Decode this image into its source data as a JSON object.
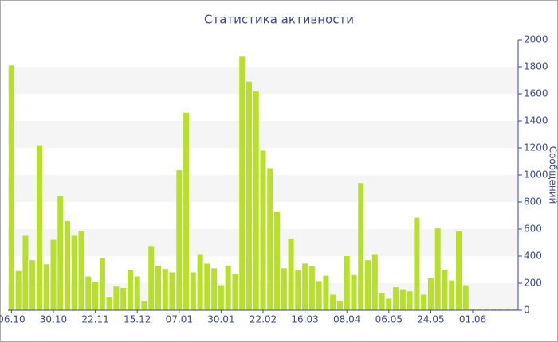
{
  "chart_data": {
    "type": "bar",
    "title": "Статистика активности",
    "y_label": "Сообщений",
    "categories": [
      "06.10",
      null,
      null,
      null,
      null,
      null,
      "30.10",
      null,
      null,
      null,
      null,
      null,
      "22.11",
      null,
      null,
      null,
      null,
      null,
      "15.12",
      null,
      null,
      null,
      null,
      null,
      "07.01",
      null,
      null,
      null,
      null,
      null,
      "30.01",
      null,
      null,
      null,
      null,
      null,
      "22.02",
      null,
      null,
      null,
      null,
      null,
      "16.03",
      null,
      null,
      null,
      null,
      null,
      "08.04",
      null,
      null,
      null,
      null,
      null,
      "06.05",
      null,
      null,
      null,
      null,
      null,
      "24.05",
      null,
      null,
      null,
      null,
      null,
      "01.06",
      null,
      null,
      null,
      null,
      null,
      null
    ],
    "values": [
      1810,
      290,
      550,
      370,
      1220,
      340,
      520,
      845,
      660,
      550,
      585,
      250,
      210,
      385,
      95,
      175,
      165,
      300,
      250,
      65,
      475,
      330,
      305,
      280,
      1035,
      1460,
      280,
      415,
      345,
      310,
      185,
      330,
      270,
      1875,
      1690,
      1620,
      1180,
      1050,
      730,
      310,
      530,
      295,
      345,
      325,
      215,
      255,
      115,
      70,
      400,
      260,
      940,
      370,
      415,
      125,
      85,
      170,
      155,
      140,
      685,
      115,
      235,
      605,
      300,
      220,
      585,
      185,
      8,
      8,
      8,
      8,
      8,
      8,
      8
    ],
    "color": "#b8df2c",
    "ylim": [
      0,
      2000
    ],
    "yticks": [
      0,
      200,
      400,
      600,
      800,
      1000,
      1200,
      1400,
      1600,
      1800,
      2000
    ],
    "grid": "banded",
    "y_axis_side": "right"
  }
}
